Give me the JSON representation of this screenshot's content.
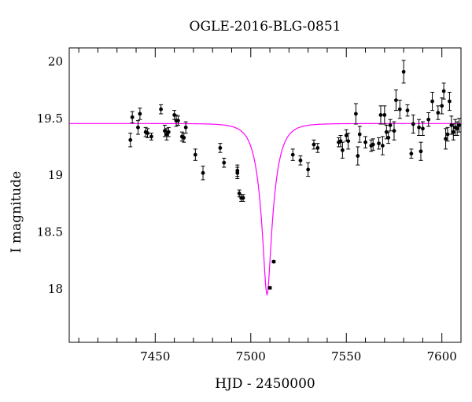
{
  "chart_data": {
    "type": "scatter",
    "title": "OGLE-2016-BLG-0851",
    "xlabel": "HJD - 2450000",
    "ylabel": "I magnitude",
    "xlim": [
      7405,
      7610
    ],
    "ylim": [
      20.12,
      17.53
    ],
    "y_inverted": true,
    "grid": false,
    "x_ticks": [
      7450,
      7500,
      7550,
      7600
    ],
    "x_tick_labels": [
      "7450",
      "7500",
      "7550",
      "7600"
    ],
    "y_ticks": [
      18,
      18.5,
      19,
      19.5,
      20
    ],
    "y_tick_labels": [
      "18",
      "18.5",
      "19",
      "19.5",
      "20"
    ],
    "model_color": "#ff00ff",
    "point_color": "#000000",
    "model_curve": {
      "baseline_mag": 19.455,
      "peak_mag": 17.95,
      "t0": 7508.5,
      "tE": 7,
      "u0": 0.24
    },
    "series": [
      {
        "type": "points",
        "x": [
          7437,
          7438,
          7441,
          7442,
          7445,
          7446,
          7448,
          7453,
          7455,
          7456,
          7457,
          7460,
          7461,
          7462,
          7464,
          7465,
          7466,
          7471,
          7475,
          7484,
          7486,
          7493,
          7493,
          7494,
          7495,
          7496,
          7510,
          7512,
          7522,
          7526,
          7530,
          7533,
          7535,
          7546,
          7547,
          7548,
          7550,
          7551,
          7555,
          7556,
          7557,
          7560,
          7563,
          7564,
          7567,
          7568,
          7569,
          7570,
          7571,
          7572,
          7573,
          7575,
          7576,
          7578,
          7580,
          7582,
          7584,
          7585,
          7588,
          7589,
          7590,
          7593,
          7595,
          7598,
          7600,
          7601,
          7602,
          7603,
          7604,
          7605,
          7606,
          7607,
          7608,
          7609
        ],
        "y": [
          19.31,
          19.51,
          19.42,
          19.54,
          19.38,
          19.37,
          19.34,
          19.58,
          19.39,
          19.36,
          19.38,
          19.53,
          19.48,
          19.48,
          19.34,
          19.33,
          19.42,
          19.18,
          19.02,
          19.24,
          19.11,
          19.02,
          19.04,
          18.84,
          18.8,
          18.8,
          18.01,
          18.24,
          19.18,
          19.13,
          19.05,
          19.27,
          19.24,
          19.29,
          19.3,
          19.22,
          19.35,
          19.3,
          19.54,
          19.17,
          19.36,
          19.29,
          19.26,
          19.27,
          19.28,
          19.53,
          19.26,
          19.53,
          19.38,
          19.33,
          19.44,
          19.39,
          19.66,
          19.58,
          19.91,
          19.57,
          19.19,
          19.45,
          19.42,
          19.21,
          19.41,
          19.49,
          19.65,
          19.55,
          19.61,
          19.74,
          19.32,
          19.36,
          19.65,
          19.44,
          19.38,
          19.42,
          19.41,
          19.44
        ],
        "err": [
          0.06,
          0.05,
          0.06,
          0.05,
          0.04,
          0.04,
          0.03,
          0.04,
          0.05,
          0.05,
          0.04,
          0.04,
          0.05,
          0.04,
          0.04,
          0.04,
          0.05,
          0.05,
          0.06,
          0.04,
          0.04,
          0.05,
          0.05,
          0.03,
          0.03,
          0.03,
          0.01,
          0.01,
          0.05,
          0.04,
          0.06,
          0.04,
          0.04,
          0.04,
          0.05,
          0.07,
          0.05,
          0.07,
          0.09,
          0.08,
          0.07,
          0.05,
          0.05,
          0.05,
          0.05,
          0.08,
          0.08,
          0.08,
          0.06,
          0.05,
          0.05,
          0.08,
          0.09,
          0.08,
          0.1,
          0.05,
          0.04,
          0.08,
          0.07,
          0.08,
          0.06,
          0.06,
          0.08,
          0.06,
          0.07,
          0.07,
          0.09,
          0.06,
          0.08,
          0.08,
          0.07,
          0.07,
          0.06,
          0.06
        ]
      }
    ]
  }
}
